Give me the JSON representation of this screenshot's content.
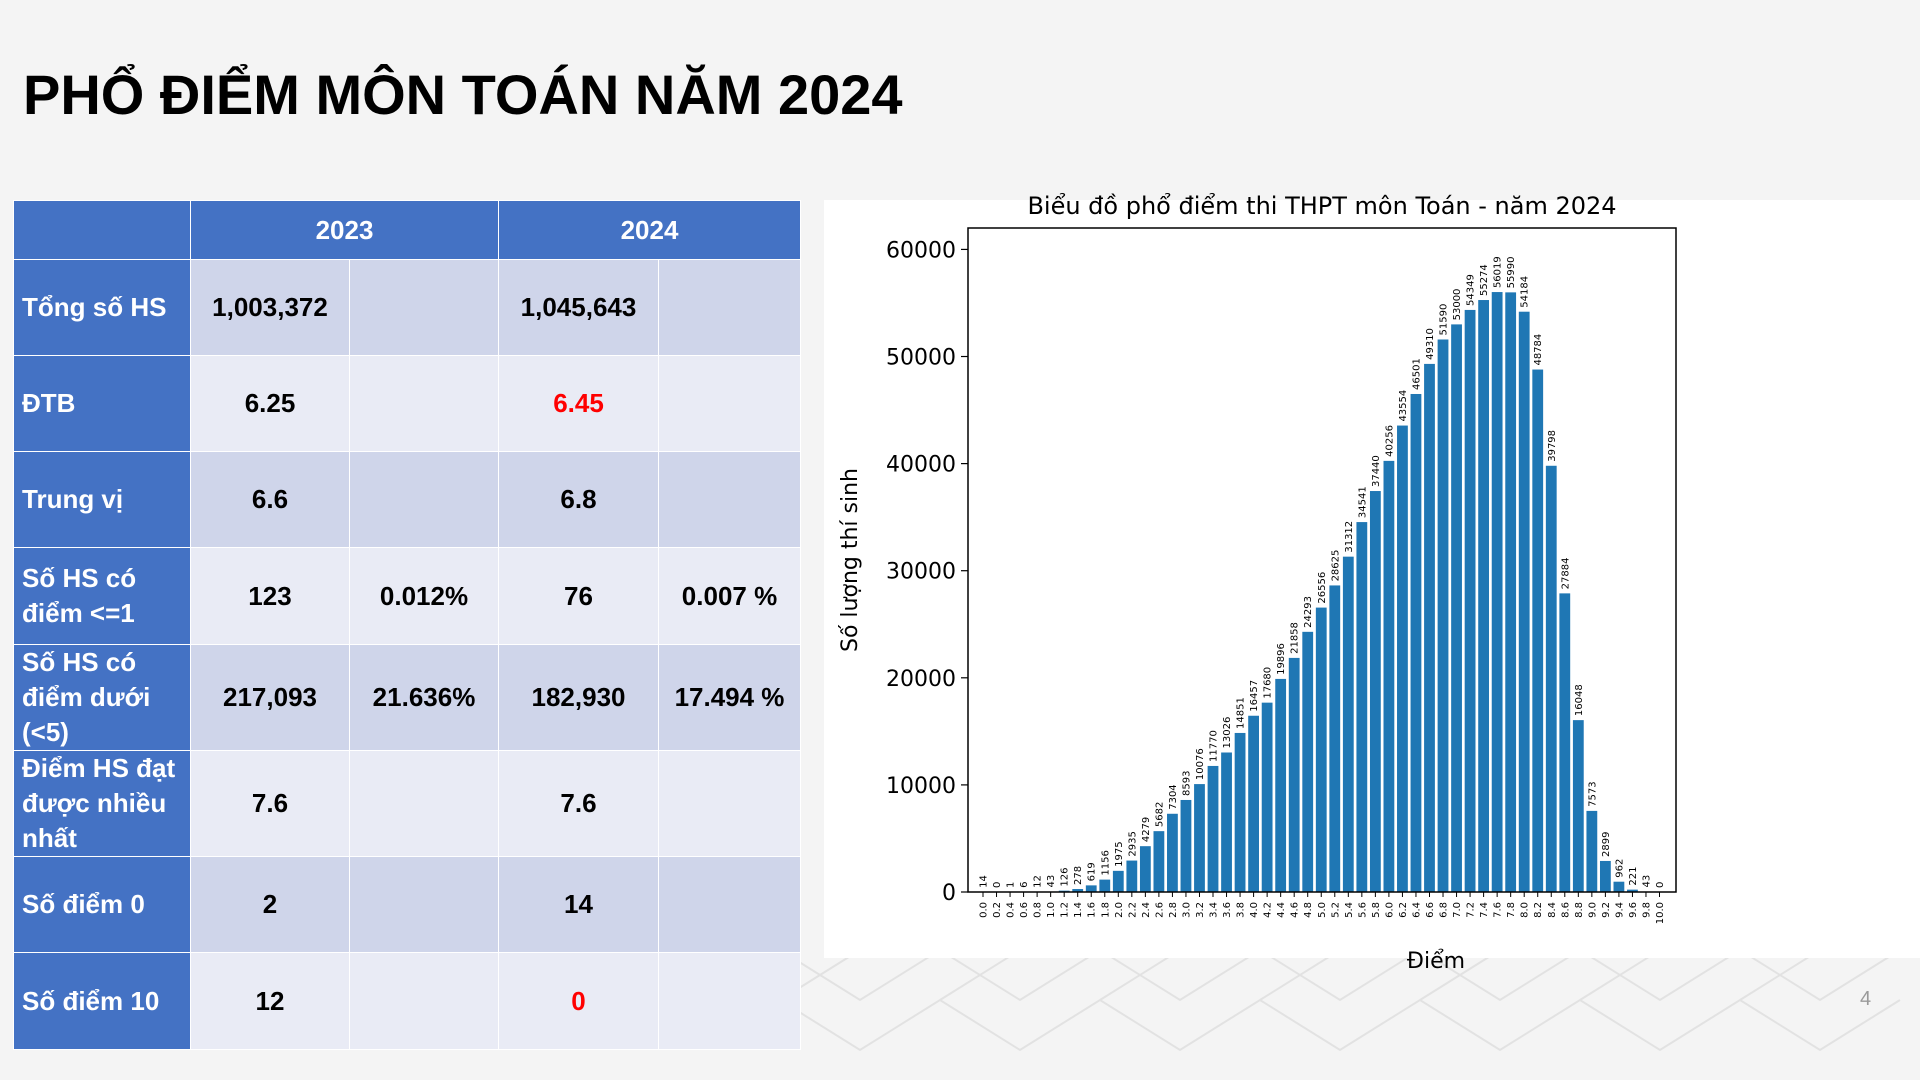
{
  "slide": {
    "title": "PHỔ ĐIỂM MÔN TOÁN NĂM 2024",
    "page_number": "4"
  },
  "table": {
    "headers": [
      "",
      "2023",
      "2024"
    ],
    "rows": [
      {
        "label": "Tổng số HS",
        "v2023": "1,003,372",
        "p2023": "",
        "v2024": "1,045,643",
        "p2024": ""
      },
      {
        "label": "ĐTB",
        "v2023": "6.25",
        "p2023": "",
        "v2024": "6.45",
        "p2024": ""
      },
      {
        "label": "Trung vị",
        "v2023": "6.6",
        "p2023": "",
        "v2024": "6.8",
        "p2024": ""
      },
      {
        "label": "Số HS có điểm <=1",
        "v2023": "123",
        "p2023": "0.012%",
        "v2024": "76",
        "p2024": "0.007 %"
      },
      {
        "label": "Số HS có điểm dưới (<5)",
        "v2023": "217,093",
        "p2023": "21.636%",
        "v2024": "182,930",
        "p2024": "17.494 %"
      },
      {
        "label": "Điểm HS đạt được nhiều nhất",
        "v2023": "7.6",
        "p2023": "",
        "v2024": "7.6",
        "p2024": ""
      },
      {
        "label": "Số điểm 0",
        "v2023": "2",
        "p2023": "",
        "v2024": "14",
        "p2024": ""
      },
      {
        "label": "Số điểm 10",
        "v2023": "12",
        "p2023": "",
        "v2024": "0",
        "p2024": ""
      }
    ],
    "highlight_color": "#ff0000",
    "header_color": "#4472c4"
  },
  "chart_data": {
    "type": "bar",
    "title": "Biểu đồ phổ điểm thi THPT môn Toán - năm 2024",
    "xlabel": "Điểm",
    "ylabel": "Số lượng thí sinh",
    "ylim": [
      0,
      62000
    ],
    "yticks": [
      "0",
      "10000",
      "20000",
      "30000",
      "40000",
      "50000",
      "60000"
    ],
    "bar_color": "#1f77b4",
    "categories": [
      "0.0",
      "0.2",
      "0.4",
      "0.6",
      "0.8",
      "1.0",
      "1.2",
      "1.4",
      "1.6",
      "1.8",
      "2.0",
      "2.2",
      "2.4",
      "2.6",
      "2.8",
      "3.0",
      "3.2",
      "3.4",
      "3.6",
      "3.8",
      "4.0",
      "4.2",
      "4.4",
      "4.6",
      "4.8",
      "5.0",
      "5.2",
      "5.4",
      "5.6",
      "5.8",
      "6.0",
      "6.2",
      "6.4",
      "6.6",
      "6.8",
      "7.0",
      "7.2",
      "7.4",
      "7.6",
      "7.8",
      "8.0",
      "8.2",
      "8.4",
      "8.6",
      "8.8",
      "9.0",
      "9.2",
      "9.4",
      "9.6",
      "9.8",
      "10.0"
    ],
    "values": [
      14,
      0,
      1,
      6,
      12,
      43,
      126,
      278,
      619,
      1156,
      1975,
      2935,
      4279,
      5682,
      7304,
      8593,
      10076,
      11770,
      13026,
      14851,
      16457,
      17680,
      19896,
      21858,
      24293,
      26556,
      28625,
      31312,
      34541,
      37440,
      40256,
      43554,
      46501,
      49310,
      51590,
      53000,
      54349,
      55274,
      56019,
      55990,
      54184,
      48784,
      39798,
      27884,
      16048,
      7573,
      2899,
      962,
      221,
      43,
      0
    ]
  }
}
